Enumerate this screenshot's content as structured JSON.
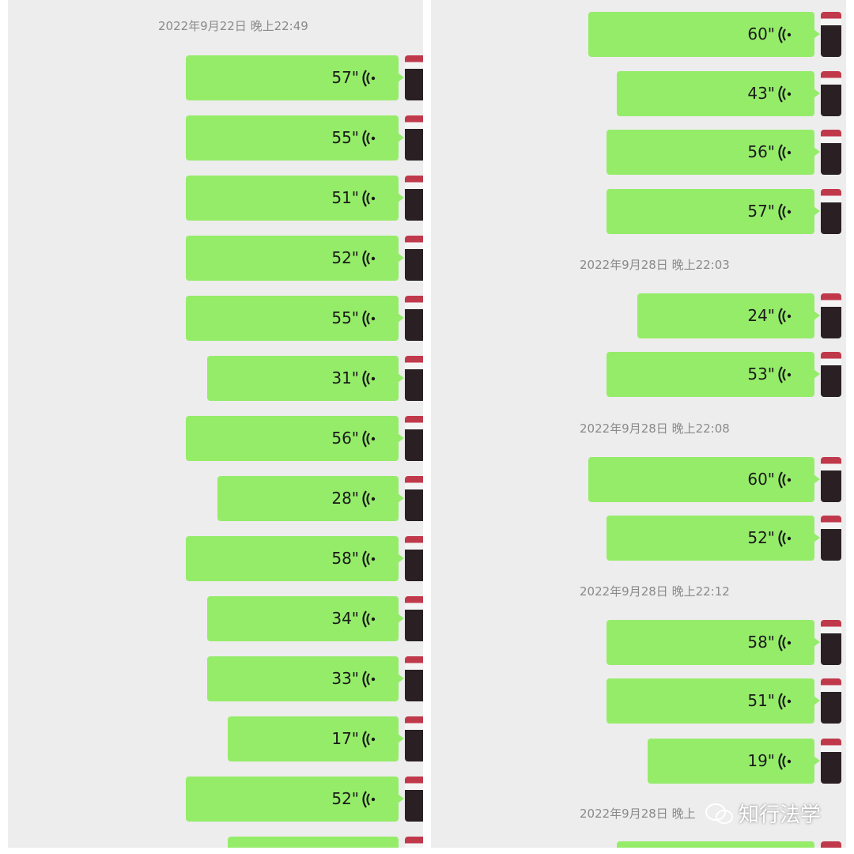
{
  "left_panel": {
    "timestamp": "2022年9月22日 晚上22:49",
    "messages": [
      "57\"",
      "55\"",
      "51\"",
      "52\"",
      "55\"",
      "31\"",
      "56\"",
      "28\"",
      "58\"",
      "34\"",
      "33\"",
      "17\"",
      "52\""
    ]
  },
  "right_panel": {
    "items": [
      {
        "kind": "message",
        "text": "60\""
      },
      {
        "kind": "message",
        "text": "43\""
      },
      {
        "kind": "message",
        "text": "56\""
      },
      {
        "kind": "message",
        "text": "57\""
      },
      {
        "kind": "timestamp",
        "text": "2022年9月28日 晚上22:03"
      },
      {
        "kind": "message",
        "text": "24\""
      },
      {
        "kind": "message",
        "text": "53\""
      },
      {
        "kind": "timestamp",
        "text": "2022年9月28日 晚上22:08"
      },
      {
        "kind": "message",
        "text": "60\""
      },
      {
        "kind": "message",
        "text": "52\""
      },
      {
        "kind": "timestamp",
        "text": "2022年9月28日 晚上22:12"
      },
      {
        "kind": "message",
        "text": "58\""
      },
      {
        "kind": "message",
        "text": "51\""
      },
      {
        "kind": "message",
        "text": "19\""
      },
      {
        "kind": "timestamp",
        "text": "2022年9月28日 晚上"
      }
    ]
  },
  "watermark": "知行法学"
}
